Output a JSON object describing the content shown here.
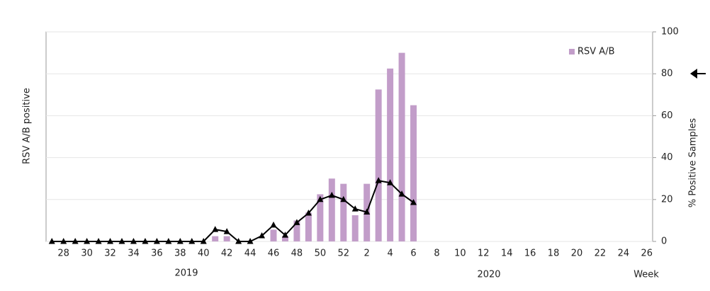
{
  "chart_data": {
    "type": "bar-line",
    "ylabel": "RSV A/B positive",
    "y2label": "% Positive Samples",
    "xlabel": "Week",
    "annotations": [
      "2019",
      "2020"
    ],
    "categories": [
      null,
      "28",
      null,
      "30",
      null,
      "32",
      null,
      "34",
      null,
      "36",
      null,
      "38",
      null,
      "40",
      null,
      "42",
      null,
      "44",
      null,
      "46",
      null,
      "48",
      null,
      "50",
      null,
      "52",
      null,
      "2",
      null,
      "4",
      null,
      "6",
      null,
      "8",
      null,
      "10",
      null,
      "12",
      null,
      "14",
      null,
      "16",
      null,
      "18",
      null,
      "20",
      null,
      "22",
      null,
      "24",
      null,
      "26"
    ],
    "ylim": [
      0,
      8
    ],
    "y2lim": [
      0,
      100
    ],
    "y2ticks": [
      0,
      20,
      40,
      60,
      80,
      100
    ],
    "legend": "top-right",
    "series": [
      {
        "name": "RSV A/B",
        "type": "bar",
        "color": "#c29dc9",
        "values": [
          0,
          0,
          0,
          0,
          0,
          0,
          0,
          0,
          0,
          0,
          0,
          0,
          0,
          0,
          0.2,
          0.2,
          0,
          0,
          0,
          0.45,
          0.2,
          0.8,
          1.1,
          1.8,
          2.4,
          2.2,
          1.0,
          2.2,
          5.8,
          6.6,
          7.2,
          5.2,
          0,
          0,
          0,
          0,
          0,
          0,
          0,
          0,
          0,
          0,
          0,
          0,
          0,
          0,
          0,
          0,
          0,
          0,
          0,
          0
        ]
      },
      {
        "type": "line",
        "axis": "y2",
        "color": "#000000",
        "values": [
          0,
          0,
          0,
          0,
          0,
          0,
          0,
          0,
          0,
          0,
          0,
          0,
          0,
          0,
          5.7,
          4.7,
          0,
          0,
          2.7,
          7.8,
          3,
          9,
          13.5,
          20,
          22,
          20,
          15.5,
          14,
          29,
          28,
          22.6,
          18.6,
          null,
          null,
          null,
          null,
          null,
          null,
          null,
          null,
          null,
          null,
          null,
          null,
          null,
          null,
          null,
          null,
          null,
          null,
          null,
          null
        ]
      }
    ]
  }
}
